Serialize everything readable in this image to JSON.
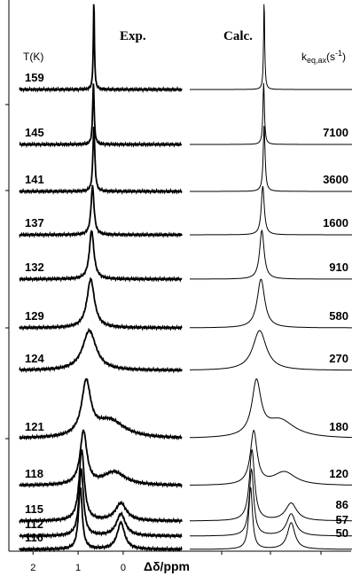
{
  "chart_data": {
    "type": "spectra",
    "panel_titles": [
      "Exp.",
      "Calc."
    ],
    "row_header": "T(K)",
    "rate_header": {
      "main": "k",
      "sub": "eq,ax",
      "open": "(s",
      "sup": "-1",
      "close": ")"
    },
    "xlabel": "Δδ/ppm",
    "xlim": [
      2.3,
      -1.3
    ],
    "xticks": [
      2,
      1,
      0
    ],
    "color": "#000000",
    "series": [
      {
        "name": "159",
        "rate": null,
        "peaks": [
          [
            0.65,
            0.015,
            100
          ]
        ]
      },
      {
        "name": "145",
        "rate": "7100",
        "peaks": [
          [
            0.66,
            0.02,
            70
          ]
        ]
      },
      {
        "name": "141",
        "rate": "3600",
        "peaks": [
          [
            0.65,
            0.025,
            75
          ]
        ]
      },
      {
        "name": "137",
        "rate": "1600",
        "peaks": [
          [
            0.68,
            0.04,
            55
          ]
        ]
      },
      {
        "name": "132",
        "rate": "910",
        "peaks": [
          [
            0.7,
            0.06,
            55
          ]
        ]
      },
      {
        "name": "129",
        "rate": "580",
        "peaks": [
          [
            0.72,
            0.1,
            55
          ]
        ]
      },
      {
        "name": "124",
        "rate": "270",
        "peaks": [
          [
            0.75,
            0.18,
            45
          ]
        ]
      },
      {
        "name": "121",
        "rate": "180",
        "peaks": [
          [
            0.82,
            0.12,
            60
          ],
          [
            0.3,
            0.4,
            20
          ]
        ]
      },
      {
        "name": "118",
        "rate": "120",
        "peaks": [
          [
            0.88,
            0.09,
            60
          ],
          [
            0.2,
            0.3,
            15
          ]
        ]
      },
      {
        "name": "115",
        "rate": "86",
        "peaks": [
          [
            0.92,
            0.07,
            80
          ],
          [
            0.05,
            0.15,
            20
          ]
        ]
      },
      {
        "name": "112",
        "rate": "57",
        "peaks": [
          [
            0.93,
            0.06,
            75
          ],
          [
            0.05,
            0.12,
            25
          ]
        ]
      },
      {
        "name": "110",
        "rate": "50",
        "peaks": [
          [
            0.95,
            0.05,
            70
          ],
          [
            0.05,
            0.1,
            30
          ]
        ]
      }
    ]
  }
}
